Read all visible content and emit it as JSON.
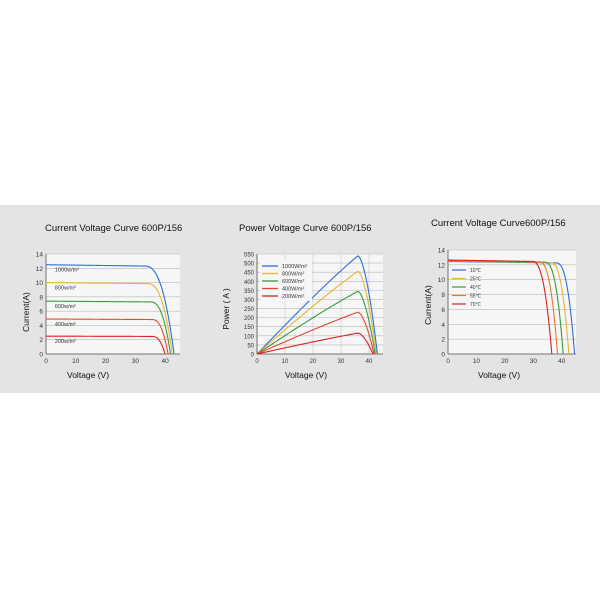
{
  "chart_data": [
    {
      "type": "line",
      "title": "Current Voltage Curve 600P/156",
      "xlabel": "Voltage (V)",
      "ylabel": "Current(A)",
      "xlim": [
        0,
        45
      ],
      "ylim": [
        0,
        14
      ],
      "x_ticks": [
        0,
        10,
        20,
        30,
        40
      ],
      "y_ticks": [
        0,
        2,
        4,
        6,
        8,
        10,
        12,
        14
      ],
      "grid": "horizontal",
      "series": [
        {
          "name": "1000w/m²",
          "color": "#2f6fd8",
          "isc": 12.5,
          "voc": 43.0,
          "knee": 33
        },
        {
          "name": "800w/m²",
          "color": "#e8b534",
          "isc": 10.0,
          "voc": 42.4,
          "knee": 34
        },
        {
          "name": "600w/m²",
          "color": "#3c9a3c",
          "isc": 7.4,
          "voc": 41.8,
          "knee": 35
        },
        {
          "name": "400w/m²",
          "color": "#e04b2c",
          "isc": 4.9,
          "voc": 41.0,
          "knee": 35.5
        },
        {
          "name": "200w/m²",
          "color": "#d82222",
          "isc": 2.5,
          "voc": 40.0,
          "knee": 35.5
        }
      ]
    },
    {
      "type": "line",
      "title": "Power Voltage Curve 600P/156",
      "xlabel": "Voltage (V)",
      "ylabel": "Power ( A )",
      "xlim": [
        0,
        45
      ],
      "ylim": [
        0,
        550
      ],
      "x_ticks": [
        0,
        10,
        20,
        30,
        40
      ],
      "y_ticks": [
        0,
        50,
        100,
        150,
        200,
        250,
        300,
        350,
        400,
        450,
        500,
        550
      ],
      "grid": "both",
      "series": [
        {
          "name": "1000W/m²",
          "color": "#2f6fd8",
          "peak_v": 36,
          "peak_p": 540,
          "voc": 43.0
        },
        {
          "name": "800W/m²",
          "color": "#e8b534",
          "peak_v": 36,
          "peak_p": 455,
          "voc": 42.6
        },
        {
          "name": "600W/m²",
          "color": "#3c9a3c",
          "peak_v": 36,
          "peak_p": 345,
          "voc": 42.2
        },
        {
          "name": "400W/m²",
          "color": "#e04b2c",
          "peak_v": 36,
          "peak_p": 230,
          "voc": 41.8
        },
        {
          "name": "200W/m²",
          "color": "#d82222",
          "peak_v": 36,
          "peak_p": 115,
          "voc": 41.4
        }
      ]
    },
    {
      "type": "line",
      "title": "Current Voltage Curve600P/156",
      "xlabel": "Voltage (V)",
      "ylabel": "Current(A)",
      "xlim": [
        0,
        45
      ],
      "ylim": [
        0,
        14
      ],
      "x_ticks": [
        0,
        10,
        20,
        30,
        40
      ],
      "y_ticks": [
        0,
        2,
        4,
        6,
        8,
        10,
        12,
        14
      ],
      "grid": "horizontal",
      "series": [
        {
          "name": "10℃",
          "color": "#2f6fd8",
          "isc": 12.45,
          "voc": 44.5,
          "knee": 38
        },
        {
          "name": "25℃",
          "color": "#e8b534",
          "isc": 12.5,
          "voc": 42.5,
          "knee": 36
        },
        {
          "name": "40℃",
          "color": "#3c9a3c",
          "isc": 12.55,
          "voc": 40.5,
          "knee": 34
        },
        {
          "name": "55℃",
          "color": "#e07a2c",
          "isc": 12.6,
          "voc": 38.5,
          "knee": 32
        },
        {
          "name": "70℃",
          "color": "#d82222",
          "isc": 12.65,
          "voc": 36.5,
          "knee": 29.5
        }
      ]
    }
  ]
}
